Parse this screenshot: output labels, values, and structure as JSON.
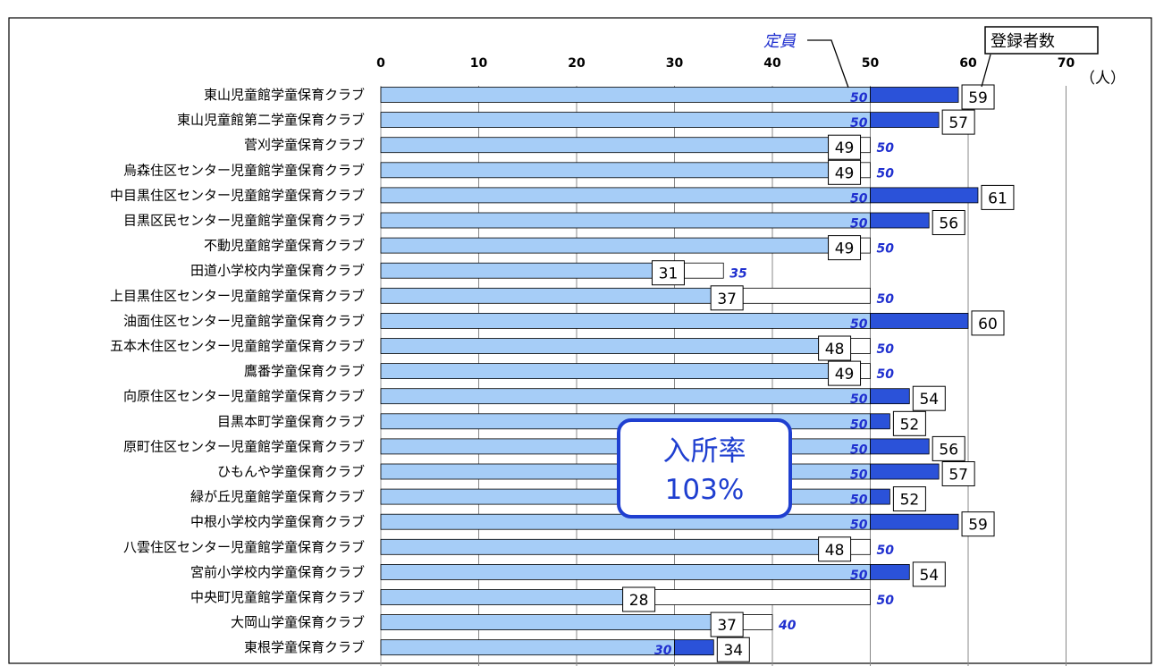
{
  "chart_data": {
    "type": "bar",
    "orientation": "horizontal",
    "title": "",
    "xlim": [
      0,
      70
    ],
    "xticks": [
      0,
      10,
      20,
      30,
      40,
      50,
      60,
      70
    ],
    "unit": "（人）",
    "grid": "vertical",
    "legend": {
      "capacity_label": "定員",
      "registered_label": "登録者数"
    },
    "annotation": {
      "line1": "入所率",
      "line2": "103%"
    },
    "colors": {
      "base": "#a6cdf7",
      "over": "#2b52d9",
      "empty": "#ffffff",
      "capacity_text": "#1f2fcf",
      "outline": "#000000"
    },
    "categories": [
      "東山児童館学童保育クラブ",
      "東山児童館第二学童保育クラブ",
      "菅刈学童保育クラブ",
      "烏森住区センター児童館学童保育クラブ",
      "中目黒住区センター児童館学童保育クラブ",
      "目黒区民センター児童館学童保育クラブ",
      "不動児童館学童保育クラブ",
      "田道小学校内学童保育クラブ",
      "上目黒住区センター児童館学童保育クラブ",
      "油面住区センター児童館学童保育クラブ",
      "五本木住区センター児童館学童保育クラブ",
      "鷹番学童保育クラブ",
      "向原住区センター児童館学童保育クラブ",
      "目黒本町学童保育クラブ",
      "原町住区センター児童館学童保育クラブ",
      "ひもんや学童保育クラブ",
      "緑が丘児童館学童保育クラブ",
      "中根小学校内学童保育クラブ",
      "八雲住区センター児童館学童保育クラブ",
      "宮前小学校内学童保育クラブ",
      "中央町児童館学童保育クラブ",
      "大岡山学童保育クラブ",
      "東根学童保育クラブ"
    ],
    "series": [
      {
        "name": "定員",
        "values": [
          50,
          50,
          50,
          50,
          50,
          50,
          50,
          35,
          50,
          50,
          50,
          50,
          50,
          50,
          50,
          50,
          50,
          50,
          50,
          50,
          50,
          40,
          30
        ]
      },
      {
        "name": "登録者数",
        "values": [
          59,
          57,
          49,
          49,
          61,
          56,
          49,
          31,
          37,
          60,
          48,
          49,
          54,
          52,
          56,
          57,
          52,
          59,
          48,
          54,
          28,
          37,
          34
        ]
      }
    ]
  }
}
